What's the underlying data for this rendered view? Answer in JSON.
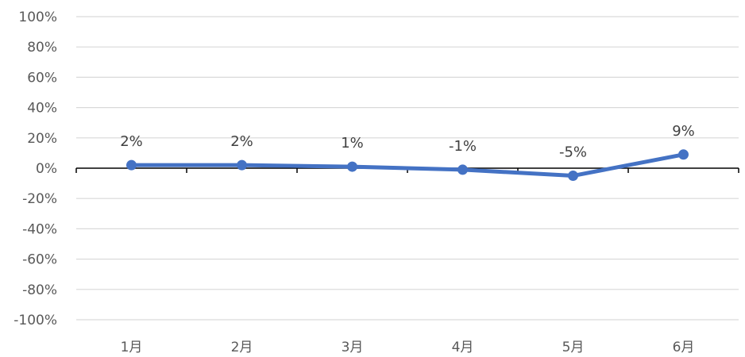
{
  "chart_data": {
    "type": "line",
    "categories": [
      "1月",
      "2月",
      "3月",
      "4月",
      "5月",
      "6月"
    ],
    "series": [
      {
        "values": [
          0.02,
          0.02,
          0.01,
          -0.01,
          -0.05,
          0.09
        ]
      }
    ],
    "data_labels": [
      "2%",
      "2%",
      "1%",
      "-1%",
      "-5%",
      "9%"
    ],
    "y_ticks": [
      1,
      0.8,
      0.6,
      0.4,
      0.2,
      0,
      -0.2,
      -0.4,
      -0.6,
      -0.8,
      -1
    ],
    "y_tick_labels": [
      "100%",
      "80%",
      "60%",
      "40%",
      "20%",
      "0%",
      "-20%",
      "-40%",
      "-60%",
      "-80%",
      "-100%"
    ],
    "ylim": [
      -1,
      1
    ],
    "grid": true,
    "legend": "none",
    "colors": {
      "line": "#4472C4",
      "grid": "#D9D9D9",
      "axis": "#000000"
    }
  }
}
